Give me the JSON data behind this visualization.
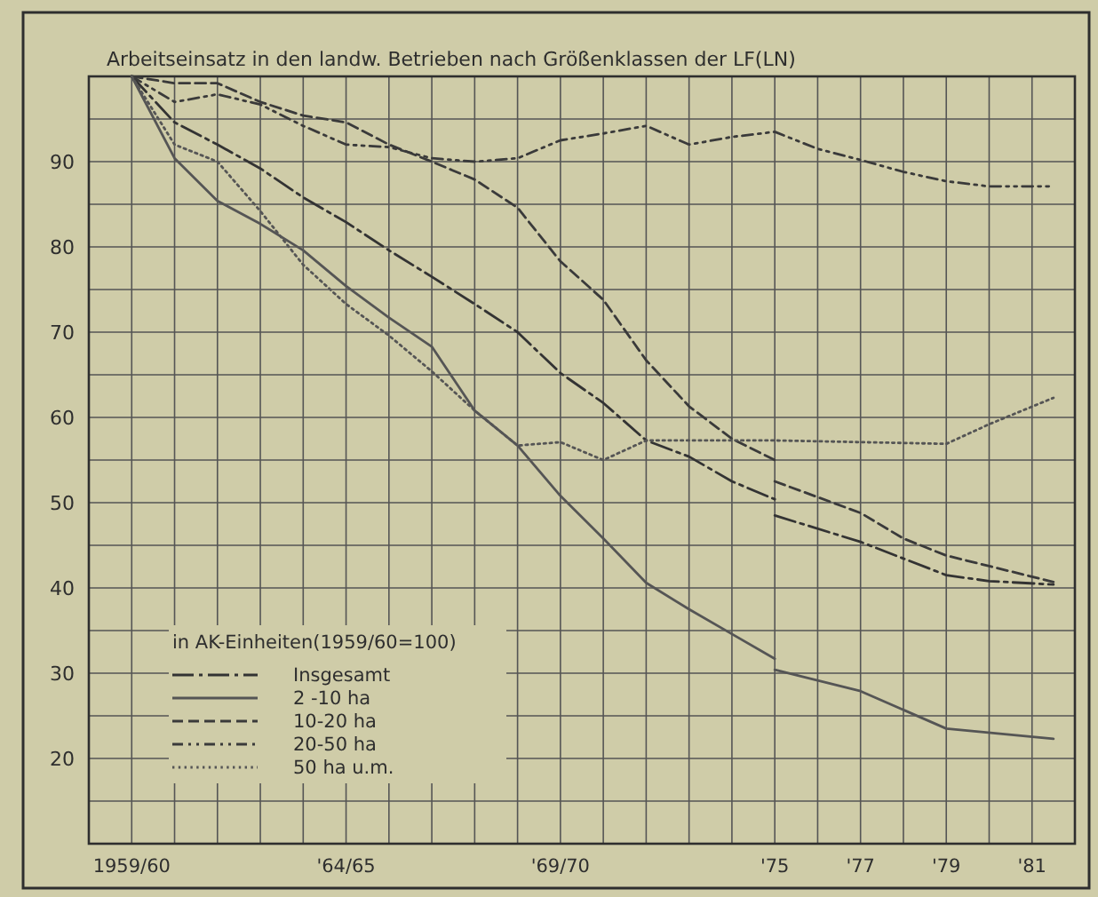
{
  "chart_data": {
    "type": "line",
    "title": "Arbeitseinsatz in den landw. Betrieben nach Größenklassen der LF(LN)",
    "legend_title": "in AK-Einheiten(1959/60=100)",
    "legend": "bottom left",
    "grid": true,
    "marker": "none",
    "xlim": [
      1959,
      1982
    ],
    "ylim": [
      10,
      100
    ],
    "xticks": [
      {
        "value": 1960,
        "label": "1959/60"
      },
      {
        "value": 1961,
        "label": null
      },
      {
        "value": 1962,
        "label": null
      },
      {
        "value": 1963,
        "label": null
      },
      {
        "value": 1964,
        "label": null
      },
      {
        "value": 1965,
        "label": "'64/65"
      },
      {
        "value": 1966,
        "label": null
      },
      {
        "value": 1967,
        "label": null
      },
      {
        "value": 1968,
        "label": null
      },
      {
        "value": 1969,
        "label": null
      },
      {
        "value": 1970,
        "label": "'69/70"
      },
      {
        "value": 1971,
        "label": null
      },
      {
        "value": 1972,
        "label": null
      },
      {
        "value": 1973,
        "label": null
      },
      {
        "value": 1974,
        "label": null
      },
      {
        "value": 1975,
        "label": "'75"
      },
      {
        "value": 1976,
        "label": null
      },
      {
        "value": 1977,
        "label": "'77"
      },
      {
        "value": 1978,
        "label": null
      },
      {
        "value": 1979,
        "label": "'79"
      },
      {
        "value": 1980,
        "label": null
      },
      {
        "value": 1981,
        "label": "'81"
      }
    ],
    "yticks": [
      {
        "value": 15,
        "label": null
      },
      20,
      {
        "value": 25,
        "label": null
      },
      30,
      {
        "value": 35,
        "label": null
      },
      40,
      {
        "value": 45,
        "label": null
      },
      50,
      {
        "value": 55,
        "label": null
      },
      60,
      {
        "value": 65,
        "label": null
      },
      70,
      {
        "value": 75,
        "label": null
      },
      80,
      {
        "value": 85,
        "label": null
      },
      90,
      {
        "value": 95,
        "label": null
      }
    ],
    "series": [
      {
        "name": "Insgesamt",
        "color": "#333333",
        "line_style": "dashdot",
        "x": [
          1960,
          1961,
          1962,
          1963,
          1964,
          1965,
          1966,
          1967,
          1968,
          1969,
          1970,
          1971,
          1972,
          1973,
          1974,
          1975,
          null,
          1975,
          1977,
          1979,
          1980,
          1981.5
        ],
        "values": [
          100,
          94.6,
          92,
          89.2,
          85.8,
          82.9,
          79.6,
          76.5,
          73.3,
          70,
          65.2,
          61.7,
          57.3,
          55.4,
          52.5,
          50.4,
          null,
          48.5,
          45.4,
          41.5,
          40.8,
          40.4
        ]
      },
      {
        "name": "2 -10 ha",
        "color": "#555555",
        "line_style": "solid",
        "x": [
          1960,
          1961,
          1962,
          1963,
          1964,
          1965,
          1966,
          1967,
          1968,
          1969,
          1970,
          1971,
          1972,
          1973,
          1974,
          1975,
          null,
          1975,
          1977,
          1979,
          1981.5
        ],
        "values": [
          100,
          90.4,
          85.4,
          82.7,
          79.6,
          75.4,
          71.7,
          68.3,
          60.8,
          56.7,
          50.8,
          45.8,
          40.6,
          37.5,
          34.6,
          31.7,
          null,
          30.4,
          27.9,
          23.5,
          22.3
        ]
      },
      {
        "name": "10-20 ha",
        "color": "#3a3a3a",
        "line_style": "dashed",
        "x": [
          1960,
          1961,
          1962,
          1963,
          1964,
          1965,
          1966,
          1967,
          1968,
          1969,
          1970,
          1971,
          1972,
          1973,
          1974,
          1975,
          null,
          1975,
          1977,
          1978,
          1979,
          1981.5
        ],
        "values": [
          100,
          99.2,
          99.2,
          97,
          95.4,
          94.6,
          92,
          90,
          87.9,
          84.6,
          78.3,
          73.8,
          66.7,
          61.3,
          57.5,
          55,
          null,
          52.5,
          48.8,
          45.8,
          43.8,
          40.7
        ]
      },
      {
        "name": "20-50 ha",
        "color": "#3a3a3a",
        "line_style": "dashdotdot",
        "x": [
          1960,
          1961,
          1962,
          1963,
          1964,
          1965,
          1966,
          1967,
          1968,
          1969,
          1970,
          1971,
          1972,
          1973,
          1974,
          1975,
          1976,
          1977,
          1978,
          1979,
          1980,
          1981.5
        ],
        "values": [
          100,
          97,
          97.9,
          96.7,
          94.2,
          92,
          91.7,
          90.4,
          90,
          90.4,
          92.5,
          93.3,
          94.2,
          92,
          92.9,
          93.5,
          91.5,
          90.2,
          88.8,
          87.7,
          87.1,
          87.1
        ]
      },
      {
        "name": "50 ha u.m.",
        "color": "#555555",
        "line_style": "dotted",
        "x": [
          1960,
          1961,
          1962,
          1963,
          1964,
          1965,
          1966,
          1967,
          1968,
          1969,
          1970,
          1971,
          1972,
          1973,
          1975,
          1977,
          1979,
          1980,
          1981.5
        ],
        "values": [
          100,
          92,
          90,
          84.2,
          77.9,
          73.3,
          69.6,
          65.4,
          60.8,
          56.7,
          57.1,
          55,
          57.3,
          57.3,
          57.3,
          57.1,
          56.9,
          59.2,
          62.3
        ]
      }
    ]
  }
}
